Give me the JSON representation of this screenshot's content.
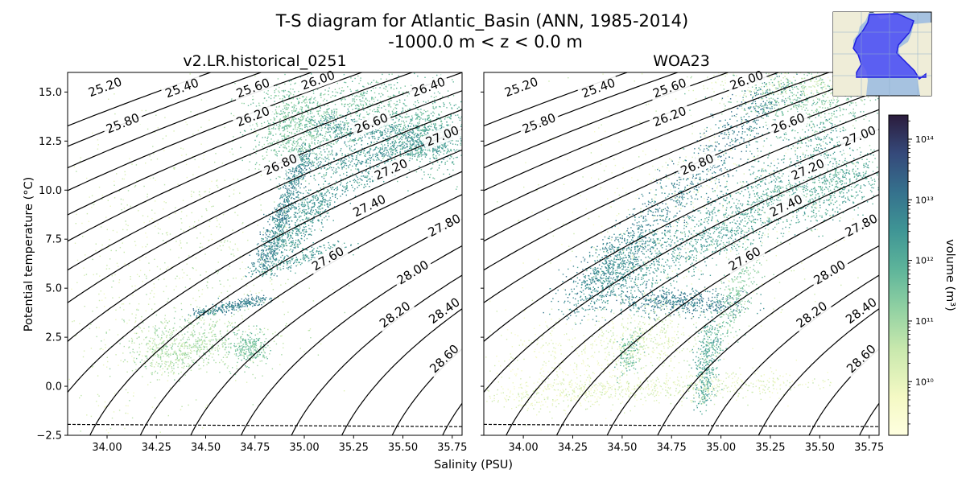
{
  "figure": {
    "title_line1": "T-S diagram for Atlantic_Basin (ANN, 1985-2014)",
    "title_line2": "-1000.0 m < z < 0.0 m",
    "xlabel": "Salinity (PSU)",
    "ylabel": "Potential temperature (°C)"
  },
  "colors": {
    "low": "#fdfdd0",
    "mid": "#5fb89a",
    "high": "#2d1e3e",
    "contour": "#000000",
    "freezing_line": "#000000"
  },
  "inset_map": {
    "icon": "atlantic-basin-map-icon",
    "ocean": "#a6c2e0",
    "land": "#efedd8",
    "basin": "#3d3df0"
  },
  "colorbar": {
    "label": "volume (m³)",
    "scale": "log",
    "range": [
      1300000000.0,
      250000000000000.0
    ],
    "ticks": [
      {
        "value": 10000000000.0,
        "label": "10¹⁰"
      },
      {
        "value": 100000000000.0,
        "label": "10¹¹"
      },
      {
        "value": 1000000000000.0,
        "label": "10¹²"
      },
      {
        "value": 10000000000000.0,
        "label": "10¹³"
      },
      {
        "value": 100000000000000.0,
        "label": "10¹⁴"
      }
    ]
  },
  "chart_data": [
    {
      "type": "heatmap",
      "title": "v2.LR.historical_0251",
      "xlim": [
        33.8,
        35.8
      ],
      "ylim": [
        -2.5,
        16.0
      ],
      "xticks": [
        34.0,
        34.25,
        34.5,
        34.75,
        35.0,
        35.25,
        35.5,
        35.75
      ],
      "xtick_labels": [
        "34.00",
        "34.25",
        "34.50",
        "34.75",
        "35.00",
        "35.25",
        "35.50",
        "35.75"
      ],
      "yticks": [
        -2.5,
        0.0,
        2.5,
        5.0,
        7.5,
        10.0,
        12.5,
        15.0
      ],
      "ytick_labels": [
        "−2.5",
        "0.0",
        "2.5",
        "5.0",
        "7.5",
        "10.0",
        "12.5",
        "15.0"
      ],
      "grid": false,
      "density_contours": [
        25.2,
        25.4,
        25.6,
        25.8,
        26.0,
        26.2,
        26.4,
        26.6,
        26.8,
        27.0,
        27.2,
        27.4,
        27.6,
        27.8,
        28.0,
        28.2,
        28.4,
        28.6
      ],
      "contour_labels": [
        {
          "text": "25.20",
          "s": 33.99,
          "t": 15.25
        },
        {
          "text": "25.40",
          "s": 34.38,
          "t": 15.2
        },
        {
          "text": "25.60",
          "s": 34.74,
          "t": 15.2
        },
        {
          "text": "26.00",
          "s": 35.07,
          "t": 15.6
        },
        {
          "text": "26.40",
          "s": 35.63,
          "t": 15.25
        },
        {
          "text": "25.80",
          "s": 34.08,
          "t": 13.4
        },
        {
          "text": "26.20",
          "s": 34.74,
          "t": 13.75
        },
        {
          "text": "26.60",
          "s": 35.34,
          "t": 13.4
        },
        {
          "text": "27.00",
          "s": 35.7,
          "t": 12.75
        },
        {
          "text": "26.80",
          "s": 34.88,
          "t": 11.3
        },
        {
          "text": "27.20",
          "s": 35.44,
          "t": 11.05
        },
        {
          "text": "27.40",
          "s": 35.33,
          "t": 9.2
        },
        {
          "text": "27.80",
          "s": 35.71,
          "t": 8.2
        },
        {
          "text": "27.60",
          "s": 35.12,
          "t": 6.5
        },
        {
          "text": "28.00",
          "s": 35.55,
          "t": 5.8
        },
        {
          "text": "28.20",
          "s": 35.46,
          "t": 3.65
        },
        {
          "text": "28.40",
          "s": 35.71,
          "t": 3.85
        },
        {
          "text": "28.60",
          "s": 35.71,
          "t": 1.4
        }
      ]
    },
    {
      "type": "heatmap",
      "title": "WOA23",
      "xlim": [
        33.8,
        35.8
      ],
      "ylim": [
        -2.5,
        16.0
      ],
      "xticks": [
        34.0,
        34.25,
        34.5,
        34.75,
        35.0,
        35.25,
        35.5,
        35.75
      ],
      "xtick_labels": [
        "34.00",
        "34.25",
        "34.50",
        "34.75",
        "35.00",
        "35.25",
        "35.50",
        "35.75"
      ],
      "yticks": [
        -2.5,
        0.0,
        2.5,
        5.0,
        7.5,
        10.0,
        12.5,
        15.0
      ],
      "grid": false,
      "density_contours": [
        25.2,
        25.4,
        25.6,
        25.8,
        26.0,
        26.2,
        26.4,
        26.6,
        26.8,
        27.0,
        27.2,
        27.4,
        27.6,
        27.8,
        28.0,
        28.2,
        28.4,
        28.6
      ],
      "contour_labels": [
        {
          "text": "25.20",
          "s": 33.99,
          "t": 15.25
        },
        {
          "text": "25.40",
          "s": 34.38,
          "t": 15.2
        },
        {
          "text": "25.60",
          "s": 34.74,
          "t": 15.2
        },
        {
          "text": "26.00",
          "s": 35.13,
          "t": 15.6
        },
        {
          "text": "25.80",
          "s": 34.08,
          "t": 13.4
        },
        {
          "text": "26.20",
          "s": 34.74,
          "t": 13.75
        },
        {
          "text": "26.60",
          "s": 35.34,
          "t": 13.4
        },
        {
          "text": "27.00",
          "s": 35.7,
          "t": 12.75
        },
        {
          "text": "26.80",
          "s": 34.88,
          "t": 11.3
        },
        {
          "text": "27.20",
          "s": 35.44,
          "t": 11.05
        },
        {
          "text": "27.40",
          "s": 35.33,
          "t": 9.2
        },
        {
          "text": "27.80",
          "s": 35.71,
          "t": 8.2
        },
        {
          "text": "27.60",
          "s": 35.12,
          "t": 6.5
        },
        {
          "text": "28.00",
          "s": 35.55,
          "t": 5.8
        },
        {
          "text": "28.20",
          "s": 35.46,
          "t": 3.65
        },
        {
          "text": "28.40",
          "s": 35.71,
          "t": 3.85
        },
        {
          "text": "28.60",
          "s": 35.71,
          "t": 1.4
        }
      ]
    }
  ]
}
